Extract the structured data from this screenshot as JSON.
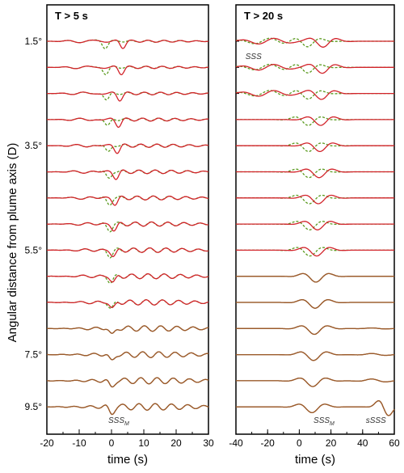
{
  "ylabel": "Angular distance from plume axis (D)",
  "y_tick_labels": [
    "1.5°",
    "3.5°",
    "5.5°",
    "7.5°",
    "9.5°"
  ],
  "colors": {
    "solid": "#d2232a",
    "dashed": "#5a9a1e",
    "overlap": "#9a5a2a",
    "frame": "#000000"
  },
  "chart_data": [
    {
      "type": "line",
      "title": "T > 5 s",
      "xlabel": "time (s)",
      "xlim": [
        -20,
        30
      ],
      "x_ticks": [
        -20,
        -10,
        0,
        10,
        20,
        30
      ],
      "x_tick_labels": [
        "-20",
        "-10",
        "0",
        "10",
        "20",
        "30"
      ],
      "traces": 15,
      "annotations": [
        {
          "label": "SSS",
          "subscript": "M",
          "x": -1,
          "trace": 15
        }
      ],
      "series": [
        {
          "style": "solid"
        },
        {
          "style": "dashed"
        }
      ]
    },
    {
      "type": "line",
      "title": "T > 20 s",
      "xlabel": "time (s)",
      "xlim": [
        -40,
        60
      ],
      "x_ticks": [
        -40,
        -20,
        0,
        20,
        40,
        60
      ],
      "x_tick_labels": [
        "-40",
        "-20",
        "0",
        "20",
        "40",
        "60"
      ],
      "traces": 15,
      "annotations": [
        {
          "label": "SSS",
          "subscript": "",
          "x": -34,
          "trace": 1
        },
        {
          "label": "SSS",
          "subscript": "M",
          "x": 9,
          "trace": 15
        },
        {
          "label": "sSSS",
          "subscript": "",
          "x": 42,
          "trace": 15
        }
      ],
      "series": [
        {
          "style": "solid"
        },
        {
          "style": "dashed"
        }
      ]
    }
  ]
}
